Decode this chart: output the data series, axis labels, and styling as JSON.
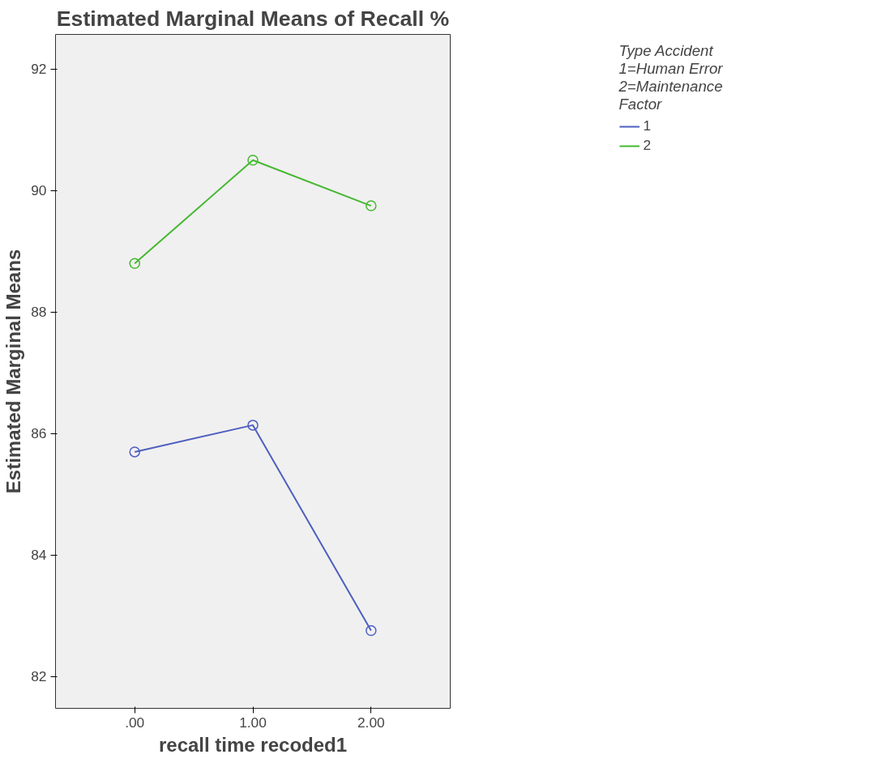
{
  "chart_data": {
    "type": "line",
    "title": "Estimated Marginal Means of Recall %",
    "xlabel": "recall time recoded1",
    "ylabel": "Estimated Marginal Means",
    "legend_title": "Type Accident\n1=Human Error\n2=Maintenance\nFactor",
    "x": [
      0,
      1,
      2
    ],
    "xlim": [
      -0.67,
      2.67
    ],
    "xticks": [
      {
        "value": 0,
        "label": ".00"
      },
      {
        "value": 1,
        "label": "1.00"
      },
      {
        "value": 2,
        "label": "2.00"
      }
    ],
    "ylim": [
      81.48,
      92.57
    ],
    "yticks": [
      82,
      84,
      86,
      88,
      90,
      92
    ],
    "series": [
      {
        "name": "1",
        "color": "#4e5fbf",
        "values": [
          85.7,
          86.14,
          82.76
        ]
      },
      {
        "name": "2",
        "color": "#45b830",
        "values": [
          88.8,
          90.5,
          89.75
        ]
      }
    ],
    "marker": "circle",
    "line_style": "solid",
    "grid": false,
    "legend": "top right"
  }
}
